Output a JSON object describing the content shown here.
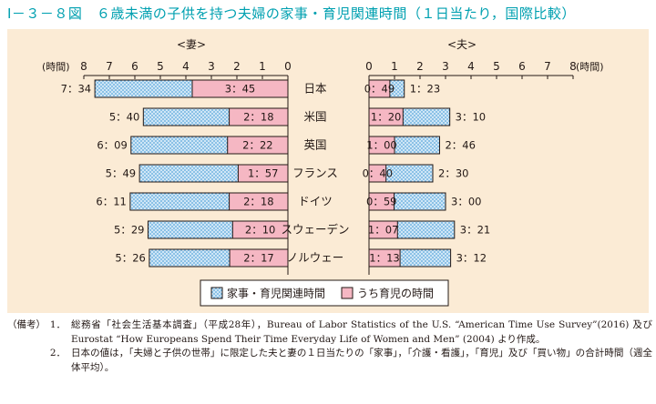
{
  "title": "Ⅰ－３－８図　６歳未満の子供を持つ夫婦の家事・育児関連時間（１日当たり，国際比較）",
  "colors": {
    "title": "#00a0b0",
    "panel_bg": "#fbebd5",
    "housework_fill": "#cfe6f6",
    "housework_dot": "#5aa7dc",
    "childcare": "#f5b7c3",
    "outline": "#231815"
  },
  "chart_data": {
    "type": "bar",
    "orientation": "horizontal-butterfly",
    "unit_label": "(時間)",
    "left_panel": {
      "label": "<妻>",
      "xlim": [
        8,
        0
      ],
      "ticks": [
        "8",
        "7",
        "6",
        "5",
        "4",
        "3",
        "2",
        "1",
        "0"
      ]
    },
    "right_panel": {
      "label": "<夫>",
      "xlim": [
        0,
        8
      ],
      "ticks": [
        "0",
        "1",
        "2",
        "3",
        "4",
        "5",
        "6",
        "7",
        "8"
      ]
    },
    "categories": [
      "日本",
      "米国",
      "英国",
      "フランス",
      "ドイツ",
      "スウェーデン",
      "ノルウェー"
    ],
    "series": [
      {
        "name": "家事・育児関連時間"
      },
      {
        "name": "うち育児の時間"
      }
    ],
    "wife": {
      "total_hours": [
        7.567,
        5.667,
        6.15,
        5.817,
        6.183,
        5.483,
        5.433
      ],
      "total_labels": [
        "7：34",
        "5：40",
        "6：09",
        "5：49",
        "6：11",
        "5：29",
        "5：26"
      ],
      "childcare_hours": [
        3.75,
        2.3,
        2.367,
        1.95,
        2.3,
        2.167,
        2.283
      ],
      "childcare_labels": [
        "3：45",
        "2：18",
        "2：22",
        "1：57",
        "2：18",
        "2：10",
        "2：17"
      ]
    },
    "husband": {
      "total_hours": [
        1.383,
        3.167,
        2.767,
        2.5,
        3.0,
        3.35,
        3.2
      ],
      "total_labels": [
        "1：23",
        "3：10",
        "2：46",
        "2：30",
        "3：00",
        "3：21",
        "3：12"
      ],
      "childcare_hours": [
        0.817,
        1.333,
        1.0,
        0.667,
        0.983,
        1.117,
        1.217
      ],
      "childcare_labels": [
        "0：49",
        "1：20",
        "1：00",
        "0：40",
        "0：59",
        "1：07",
        "1：13"
      ]
    }
  },
  "notes": {
    "tag": "（備考）",
    "items": [
      {
        "num": "1．",
        "text": "総務省「社会生活基本調査」（平成28年），Bureau of Labor Statistics of the U.S. “American Time Use Survey”(2016) 及びEurostat “How Europeans Spend Their Time Everyday Life of Women and Men” (2004) より作成。"
      },
      {
        "num": "2．",
        "text": "日本の値は，「夫婦と子供の世帯」に限定した夫と妻の１日当たりの「家事」，「介護・看護」，「育児」及び「買い物」の合計時間（週全体平均）。"
      }
    ]
  }
}
